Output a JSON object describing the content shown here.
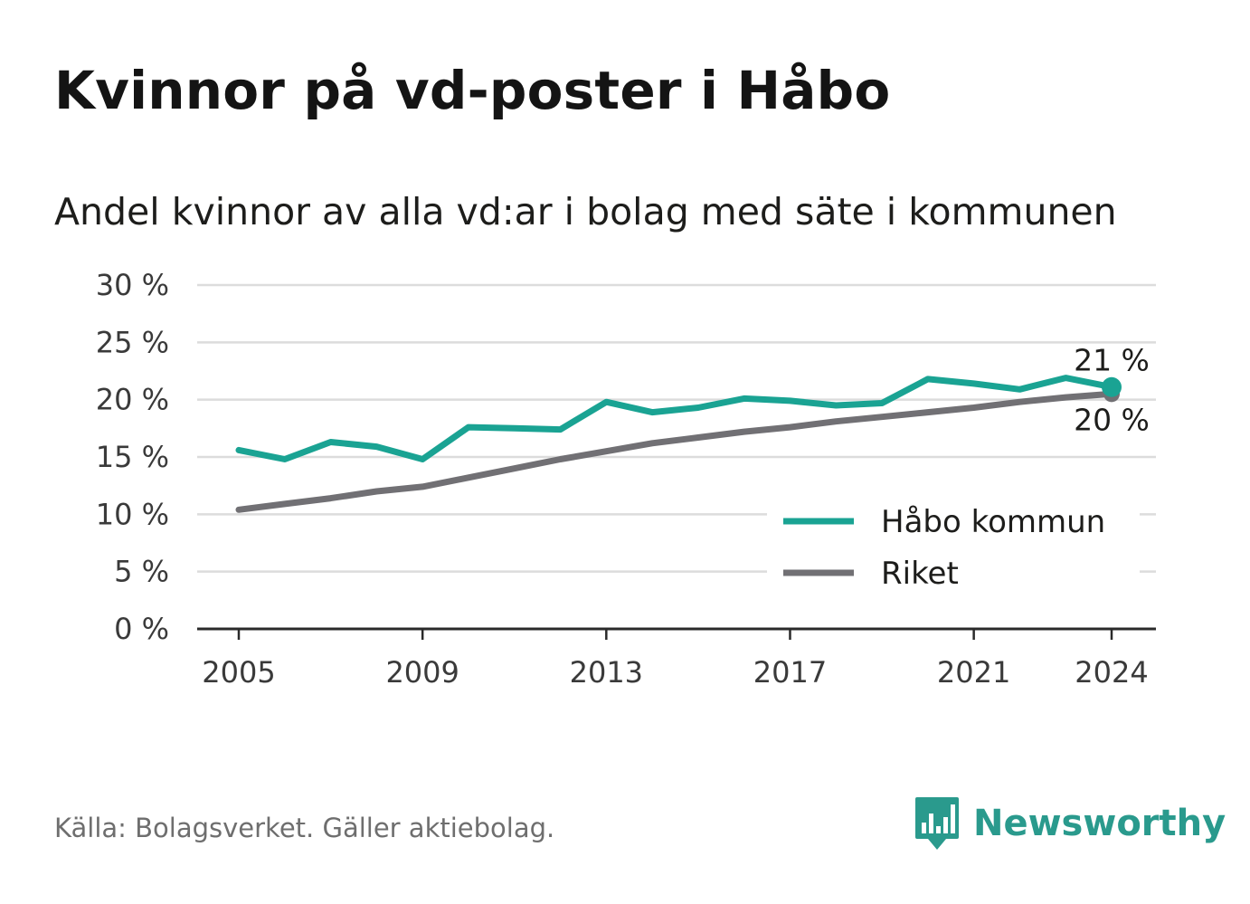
{
  "title": "Kvinnor på vd-poster i Håbo",
  "subtitle": "Andel kvinnor av alla vd:ar i bolag med säte i kommunen",
  "source": "Källa: Bolagsverket. Gäller aktiebolag.",
  "brand": {
    "name": "Newsworthy",
    "icon": "newsworthy-logo-icon",
    "color": "#2a9a8d"
  },
  "chart_data": {
    "type": "line",
    "x": [
      2005,
      2006,
      2007,
      2008,
      2009,
      2010,
      2011,
      2012,
      2013,
      2014,
      2015,
      2016,
      2017,
      2018,
      2019,
      2020,
      2021,
      2022,
      2023,
      2024
    ],
    "series": [
      {
        "name": "Håbo kommun",
        "color": "#1aa393",
        "values": [
          15.6,
          14.8,
          16.3,
          15.9,
          14.8,
          17.6,
          17.5,
          17.4,
          19.8,
          18.9,
          19.3,
          20.1,
          19.9,
          19.5,
          19.7,
          21.8,
          21.4,
          20.9,
          21.9,
          21.1
        ],
        "end_label": "21 %"
      },
      {
        "name": "Riket",
        "color": "#717074",
        "values": [
          10.4,
          10.9,
          11.4,
          12.0,
          12.4,
          13.2,
          14.0,
          14.8,
          15.5,
          16.2,
          16.7,
          17.2,
          17.6,
          18.1,
          18.5,
          18.9,
          19.3,
          19.8,
          20.2,
          20.5
        ],
        "end_label": "20 %"
      }
    ],
    "ylim": [
      0,
      30
    ],
    "yticks": [
      0,
      5,
      10,
      15,
      20,
      25,
      30
    ],
    "ytick_labels": [
      "0 %",
      "5 %",
      "10 %",
      "15 %",
      "20 %",
      "25 %",
      "30 %"
    ],
    "xticks": [
      2005,
      2009,
      2013,
      2017,
      2021,
      2024
    ],
    "xtick_labels": [
      "2005",
      "2009",
      "2013",
      "2017",
      "2021",
      "2024"
    ],
    "grid": true,
    "legend": "bottom-right"
  }
}
